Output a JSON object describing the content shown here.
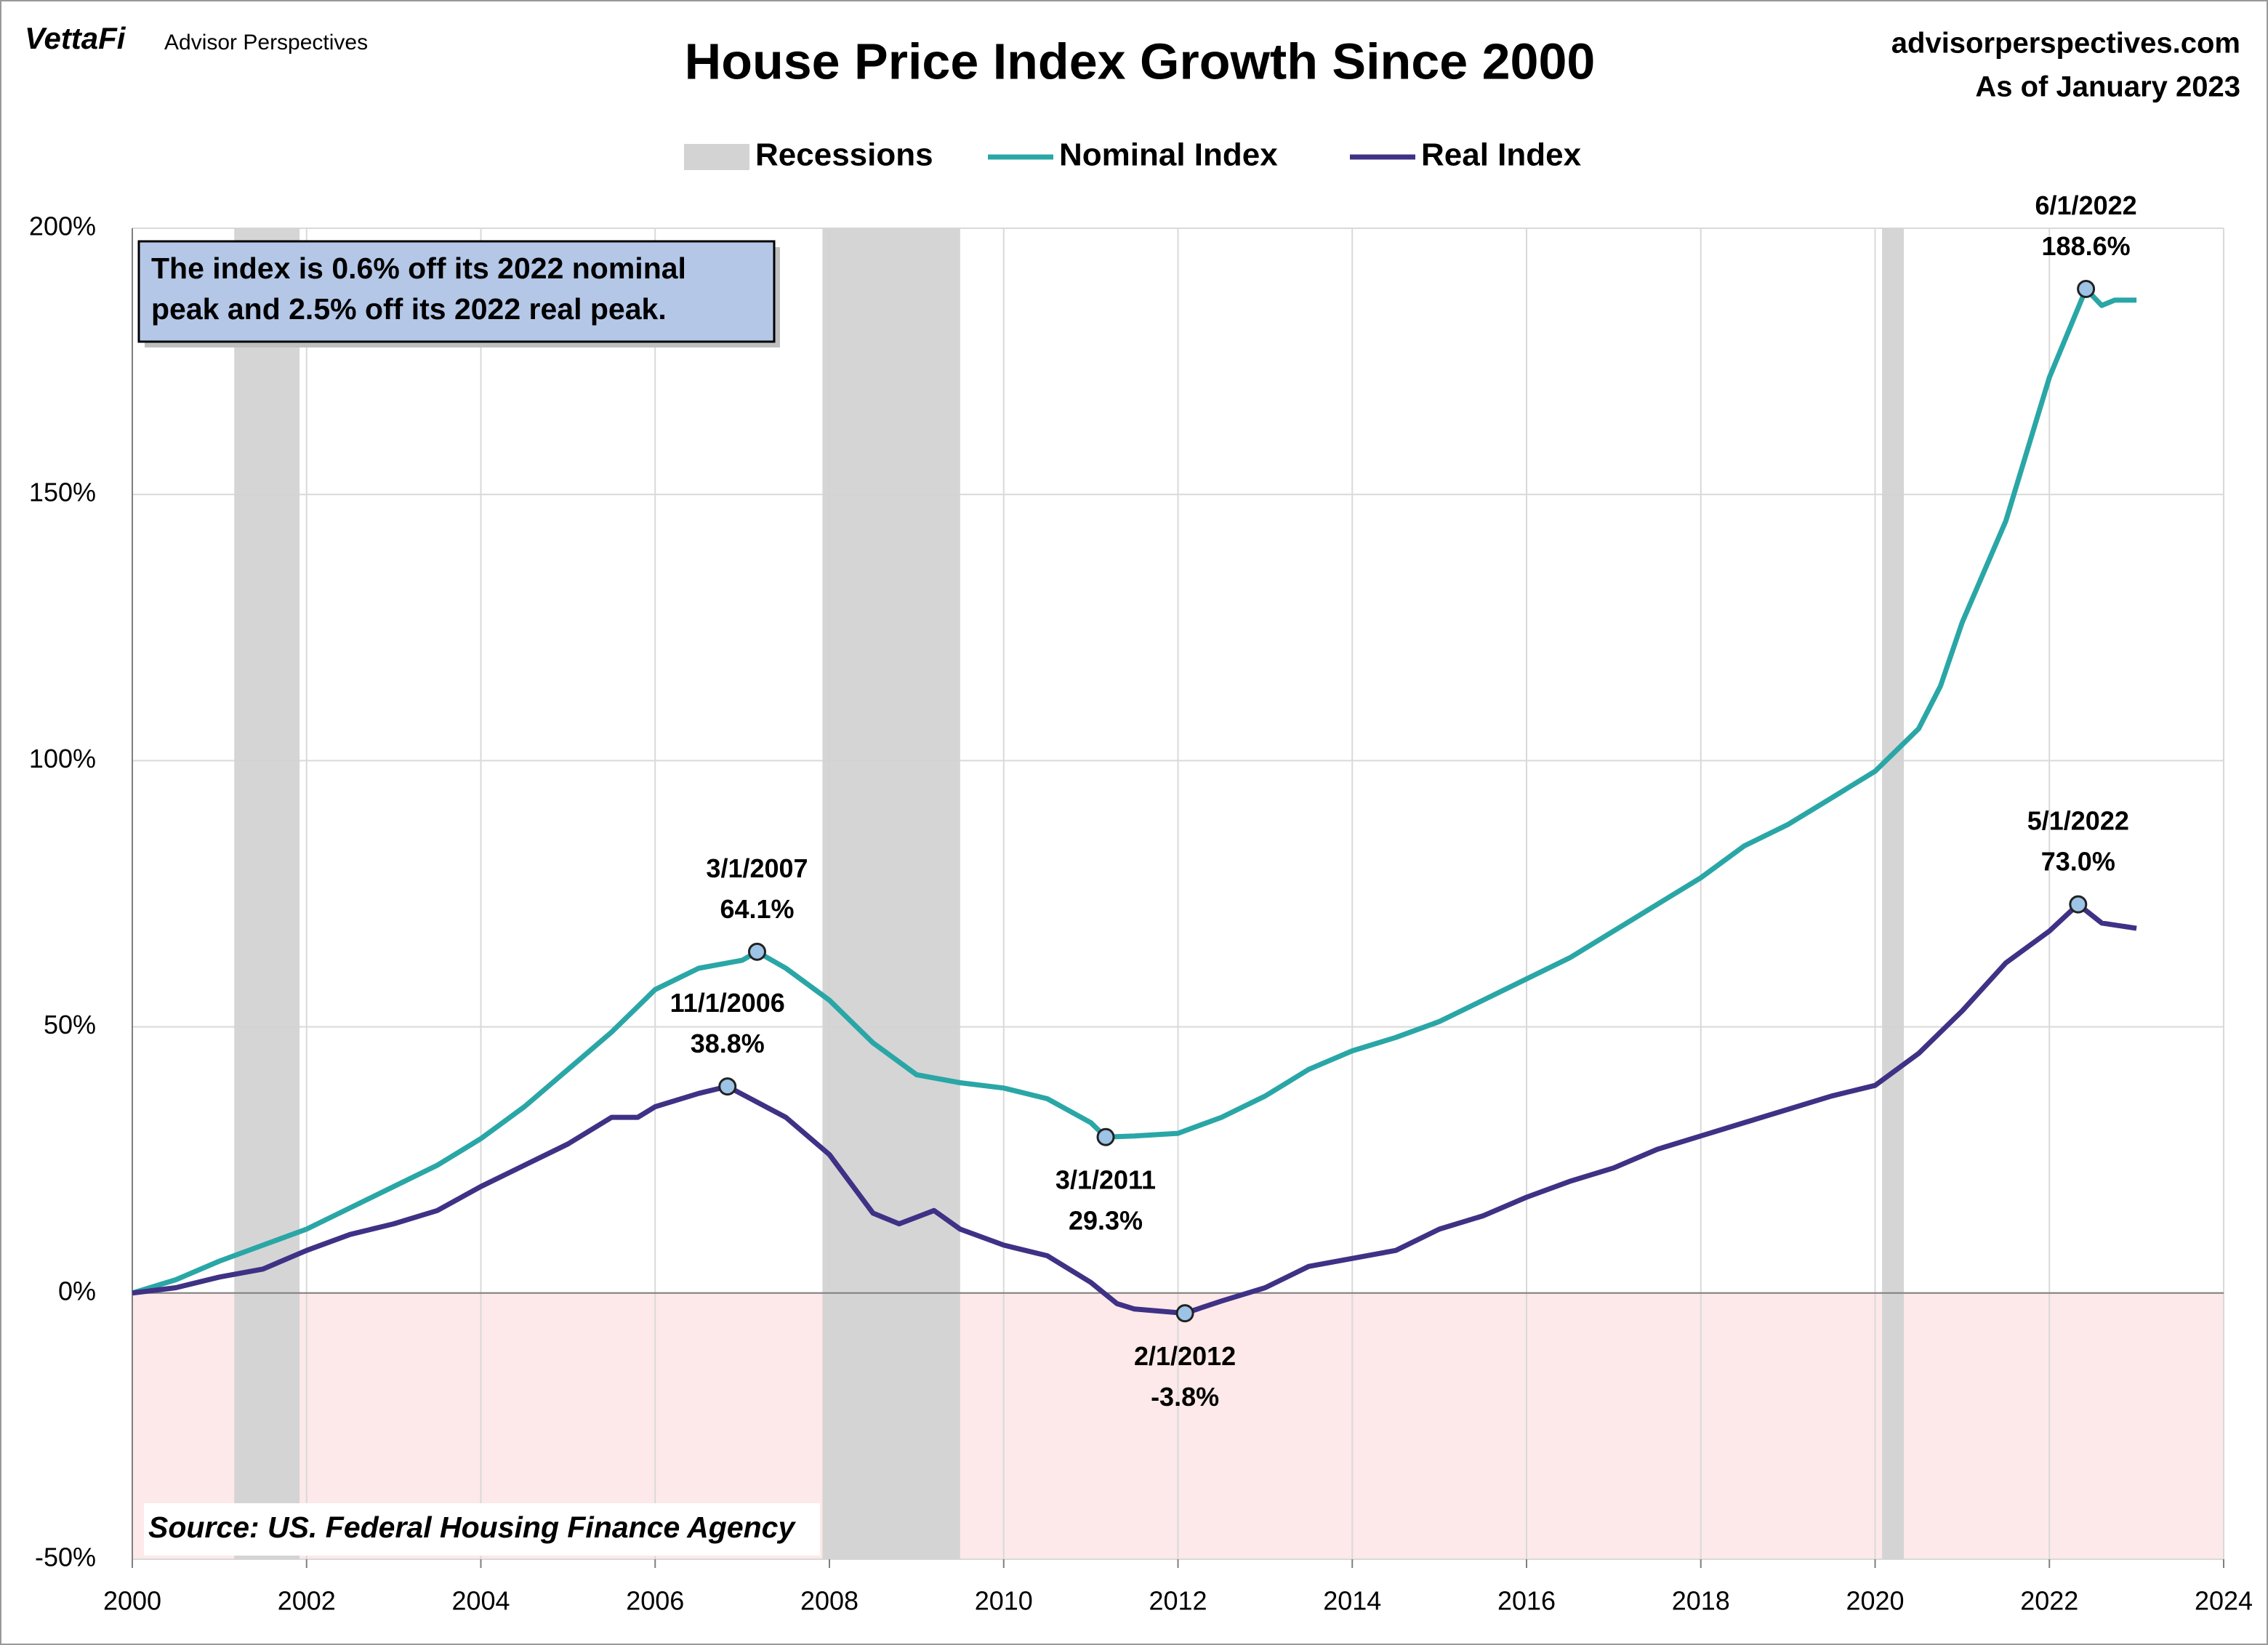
{
  "brand": "VettaFi",
  "brand_sub": "Advisor Perspectives",
  "site": "advisorperspectives.com",
  "as_of": "As of January 2023",
  "chart_data": {
    "type": "line",
    "title": "House Price Index Growth Since 2000",
    "note": [
      "The index is 0.6% off its 2022 nominal",
      "peak and 2.5% off its 2022 real peak."
    ],
    "source": "Source: US. Federal Housing Finance Agency",
    "recessions_label": "Recessions",
    "recessions_color": "#d3d3d3",
    "recessions": [
      [
        2001.17,
        2001.92
      ],
      [
        2007.92,
        2009.5
      ],
      [
        2020.08,
        2020.33
      ]
    ],
    "series": [
      {
        "name": "Nominal Index",
        "color": "#2aa6a6",
        "x": [
          2000,
          2000.5,
          2001,
          2001.5,
          2002,
          2002.5,
          2003,
          2003.5,
          2004,
          2004.5,
          2005,
          2005.5,
          2006,
          2006.5,
          2007,
          2007.17,
          2007.5,
          2008,
          2008.5,
          2009,
          2009.5,
          2010,
          2010.5,
          2011,
          2011.17,
          2011.5,
          2012,
          2012.5,
          2013,
          2013.5,
          2014,
          2014.5,
          2015,
          2015.5,
          2016,
          2016.5,
          2017,
          2017.5,
          2018,
          2018.5,
          2019,
          2019.5,
          2020,
          2020.5,
          2020.75,
          2021,
          2021.5,
          2022,
          2022.42,
          2022.6,
          2022.75,
          2023
        ],
        "values": [
          0,
          2.5,
          6,
          9,
          12,
          16,
          20,
          24,
          29,
          35,
          42,
          49,
          57,
          61,
          62.5,
          64.1,
          61,
          55,
          47,
          41,
          39.5,
          38.5,
          36.5,
          32,
          29.3,
          29.5,
          30,
          33,
          37,
          42,
          45.5,
          48,
          51,
          55,
          59,
          63,
          68,
          73,
          78,
          84,
          88,
          93,
          98,
          106,
          114,
          126,
          145,
          172,
          188.6,
          185.5,
          186.5,
          186.5
        ]
      },
      {
        "name": "Real Index",
        "color": "#3f3185",
        "x": [
          2000,
          2000.5,
          2001,
          2001.5,
          2002,
          2002.5,
          2003,
          2003.5,
          2004,
          2004.5,
          2005,
          2005.5,
          2005.8,
          2006,
          2006.5,
          2006.83,
          2007.5,
          2008,
          2008.5,
          2008.8,
          2009.2,
          2009.5,
          2010,
          2010.5,
          2011,
          2011.3,
          2011.5,
          2012.08,
          2012.5,
          2013,
          2013.5,
          2014,
          2014.5,
          2015,
          2015.5,
          2016,
          2016.5,
          2017,
          2017.5,
          2018,
          2018.5,
          2019,
          2019.5,
          2020,
          2020.5,
          2021,
          2021.5,
          2022,
          2022.33,
          2022.6,
          2023
        ],
        "values": [
          0,
          1,
          3,
          4.5,
          8,
          11,
          13,
          15.5,
          20,
          24,
          28,
          33,
          33,
          35,
          37.5,
          38.8,
          33,
          26,
          15,
          13,
          15.5,
          12,
          9,
          7,
          2,
          -2,
          -3,
          -3.8,
          -1.5,
          1,
          5,
          6.5,
          8,
          12,
          14.5,
          18,
          21,
          23.5,
          27,
          29.5,
          32,
          34.5,
          37,
          39,
          45,
          53,
          62,
          68,
          73,
          69.5,
          68.5
        ]
      }
    ],
    "annotations": [
      {
        "series": 0,
        "x": 2007.17,
        "y": 64.1,
        "date": "3/1/2007",
        "label": "64.1%"
      },
      {
        "series": 1,
        "x": 2006.83,
        "y": 38.8,
        "date": "11/1/2006",
        "label": "38.8%"
      },
      {
        "series": 0,
        "x": 2011.17,
        "y": 29.3,
        "date": "3/1/2011",
        "label": "29.3%"
      },
      {
        "series": 1,
        "x": 2012.08,
        "y": -3.8,
        "date": "2/1/2012",
        "label": "-3.8%"
      },
      {
        "series": 0,
        "x": 2022.42,
        "y": 188.6,
        "date": "6/1/2022",
        "label": "188.6%"
      },
      {
        "series": 1,
        "x": 2022.33,
        "y": 73,
        "date": "5/1/2022",
        "label": "73.0%"
      }
    ],
    "xlim": [
      2000,
      2024
    ],
    "xticks": [
      2000,
      2002,
      2004,
      2006,
      2008,
      2010,
      2012,
      2014,
      2016,
      2018,
      2020,
      2022,
      2024
    ],
    "ylim": [
      -50,
      200
    ],
    "yticks": [
      {
        "value": -50,
        "label": "-50%"
      },
      {
        "value": 0,
        "label": "0%"
      },
      {
        "value": 50,
        "label": "50%"
      },
      {
        "value": 100,
        "label": "100%"
      },
      {
        "value": 150,
        "label": "150%"
      },
      {
        "value": 200,
        "label": "200%"
      }
    ],
    "grid": true
  }
}
